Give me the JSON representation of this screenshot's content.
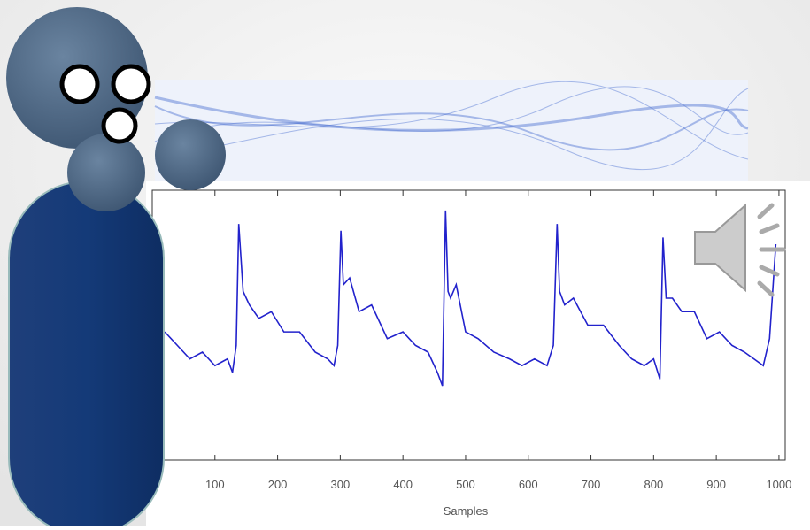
{
  "chart_data": {
    "type": "line",
    "x_label": "Samples",
    "color": "#2222cc",
    "x": [
      20,
      40,
      60,
      80,
      100,
      120,
      128,
      134,
      138,
      145,
      155,
      170,
      190,
      210,
      235,
      260,
      280,
      290,
      296,
      301,
      305,
      315,
      330,
      350,
      375,
      400,
      420,
      440,
      455,
      463,
      468,
      472,
      476,
      485,
      500,
      520,
      545,
      570,
      590,
      610,
      630,
      640,
      646,
      650,
      658,
      672,
      695,
      720,
      745,
      765,
      785,
      800,
      810,
      815,
      820,
      830,
      845,
      865,
      885,
      905,
      925,
      945,
      960,
      975,
      985,
      995
    ],
    "values": [
      -0.1,
      -0.3,
      -0.5,
      -0.4,
      -0.6,
      -0.5,
      -0.7,
      -0.3,
      1.5,
      0.5,
      0.3,
      0.1,
      0.2,
      -0.1,
      -0.1,
      -0.4,
      -0.5,
      -0.6,
      -0.3,
      1.4,
      0.6,
      0.7,
      0.2,
      0.3,
      -0.2,
      -0.1,
      -0.3,
      -0.4,
      -0.7,
      -0.9,
      1.7,
      0.5,
      0.4,
      0.6,
      -0.1,
      -0.2,
      -0.4,
      -0.5,
      -0.6,
      -0.5,
      -0.6,
      -0.3,
      1.5,
      0.5,
      0.3,
      0.4,
      0.0,
      0.0,
      -0.3,
      -0.5,
      -0.6,
      -0.5,
      -0.8,
      1.3,
      0.4,
      0.4,
      0.2,
      0.2,
      -0.2,
      -0.1,
      -0.3,
      -0.4,
      -0.5,
      -0.6,
      -0.2,
      1.2
    ],
    "xlim": [
      0,
      1010
    ],
    "xticks": [
      100,
      200,
      300,
      400,
      500,
      600,
      700,
      800,
      900,
      1000
    ],
    "ylim": [
      -2,
      2
    ]
  }
}
